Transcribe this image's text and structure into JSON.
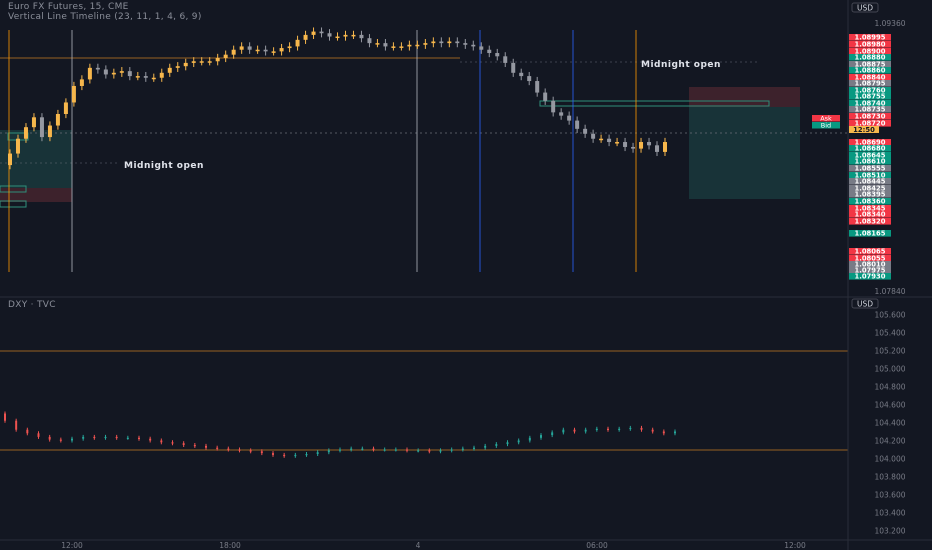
{
  "header": {
    "title_line": "Euro FX Futures, 15, CME",
    "indicator_line": "Vertical Line Timeline (23, 11, 1, 4, 6, 9)",
    "lower_title": "DXY · TVC"
  },
  "colors": {
    "background": "#131722",
    "up_candle": "#f7b74c",
    "down_candle": "#9598a1",
    "dxy_up": "#26a69a",
    "dxy_down": "#ef5350",
    "orange_line": "#c57b25",
    "session_blue": "#2962ff",
    "session_white": "#b2b5be",
    "session_orange": "#ff9800",
    "price_red": "#f23645",
    "price_green": "#089981",
    "price_gray": "#787b86"
  },
  "annotations": {
    "midnight_1": "Midnight open",
    "midnight_2": "Midnight open"
  },
  "chart_data": [
    {
      "type": "candlestick",
      "title": "Euro FX Futures, 15, CME",
      "currency": "USD",
      "y_ticks": [
        "1.09360",
        "1.07840"
      ],
      "ylim": [
        1.0778,
        1.094
      ],
      "candles_close": [
        1.0862,
        1.0871,
        1.0878,
        1.0884,
        1.0872,
        1.0879,
        1.0886,
        1.0893,
        1.0903,
        1.0907,
        1.0914,
        1.0913,
        1.091,
        1.0911,
        1.0912,
        1.0909,
        1.0909,
        1.0908,
        1.0908,
        1.0911,
        1.0914,
        1.0915,
        1.0917,
        1.0918,
        1.0918,
        1.0918,
        1.092,
        1.0922,
        1.0925,
        1.0927,
        1.0925,
        1.0925,
        1.0924,
        1.0924,
        1.0926,
        1.0927,
        1.0931,
        1.0934,
        1.0936,
        1.0935,
        1.0933,
        1.0933,
        1.0934,
        1.0934,
        1.0932,
        1.0929,
        1.0929,
        1.0927,
        1.0927,
        1.0927,
        1.0928,
        1.0928,
        1.0929,
        1.093,
        1.0929,
        1.093,
        1.0929,
        1.0928,
        1.0927,
        1.0925,
        1.0923,
        1.0921,
        1.0917,
        1.0911,
        1.0909,
        1.0906,
        1.0899,
        1.0894,
        1.0887,
        1.0885,
        1.0882,
        1.0877,
        1.0874,
        1.0871,
        1.0871,
        1.0869,
        1.0869,
        1.0866,
        1.0865,
        1.0869,
        1.0867,
        1.0863,
        1.0869
      ],
      "candles_open": [
        1.0855,
        1.0862,
        1.0871,
        1.0878,
        1.0884,
        1.0872,
        1.0879,
        1.0886,
        1.0893,
        1.0903,
        1.0907,
        1.0914,
        1.0913,
        1.091,
        1.0911,
        1.0912,
        1.0909,
        1.0909,
        1.0908,
        1.0908,
        1.0911,
        1.0914,
        1.0915,
        1.0917,
        1.0918,
        1.0918,
        1.0918,
        1.092,
        1.0922,
        1.0925,
        1.0927,
        1.0925,
        1.0925,
        1.0924,
        1.0924,
        1.0926,
        1.0927,
        1.0931,
        1.0934,
        1.0936,
        1.0935,
        1.0933,
        1.0933,
        1.0934,
        1.0934,
        1.0932,
        1.0929,
        1.0929,
        1.0927,
        1.0927,
        1.0927,
        1.0928,
        1.0928,
        1.0929,
        1.093,
        1.0929,
        1.093,
        1.0929,
        1.0928,
        1.0927,
        1.0925,
        1.0923,
        1.0921,
        1.0917,
        1.0911,
        1.0909,
        1.0906,
        1.0899,
        1.0894,
        1.0887,
        1.0885,
        1.0882,
        1.0877,
        1.0874,
        1.0871,
        1.0871,
        1.0869,
        1.0869,
        1.0866,
        1.0865,
        1.0869,
        1.0867,
        1.0863
      ],
      "price_labels": [
        {
          "text": "1.08995",
          "color": "red"
        },
        {
          "text": "1.08980",
          "color": "red"
        },
        {
          "text": "1.08900",
          "color": "red"
        },
        {
          "text": "1.08880",
          "color": "green"
        },
        {
          "text": "1.08875",
          "color": "gray"
        },
        {
          "text": "1.08860",
          "color": "green"
        },
        {
          "text": "1.08840",
          "color": "red"
        },
        {
          "text": "1.08795",
          "color": "gray"
        },
        {
          "text": "1.08760",
          "color": "green"
        },
        {
          "text": "1.08755",
          "color": "green"
        },
        {
          "text": "1.08740",
          "color": "green"
        },
        {
          "text": "1.08735",
          "color": "gray"
        },
        {
          "text": "1.08730",
          "color": "red"
        },
        {
          "text": "1.08720",
          "color": "red"
        },
        {
          "text": "1.08690",
          "color": "red"
        },
        {
          "text": "1.08680",
          "color": "green"
        },
        {
          "text": "1.08645",
          "color": "green"
        },
        {
          "text": "1.08610",
          "color": "green"
        },
        {
          "text": "1.08555",
          "color": "gray"
        },
        {
          "text": "1.08510",
          "color": "green"
        },
        {
          "text": "1.08445",
          "color": "gray"
        },
        {
          "text": "1.08425",
          "color": "gray"
        },
        {
          "text": "1.08395",
          "color": "gray"
        },
        {
          "text": "1.08360",
          "color": "green"
        },
        {
          "text": "1.08345",
          "color": "red"
        },
        {
          "text": "1.08340",
          "color": "red"
        },
        {
          "text": "1.08320",
          "color": "red"
        },
        {
          "text": "1.08165",
          "color": "green"
        },
        {
          "text": "1.08065",
          "color": "red"
        },
        {
          "text": "1.08055",
          "color": "red"
        },
        {
          "text": "1.08010",
          "color": "gray"
        },
        {
          "text": "1.07975",
          "color": "gray"
        },
        {
          "text": "1.07930",
          "color": "green"
        }
      ],
      "ask_label": "Ask",
      "bid_label": "Bid",
      "current_label": "12:50"
    },
    {
      "type": "candlestick",
      "title": "DXY · TVC",
      "currency": "USD",
      "y_ticks": [
        "105.600",
        "105.400",
        "105.200",
        "105.000",
        "104.800",
        "104.600",
        "104.400",
        "104.200",
        "104.000",
        "103.800",
        "103.600",
        "103.400",
        "103.200"
      ],
      "ylim": [
        103.15,
        105.65
      ],
      "closes": [
        104.42,
        104.32,
        104.28,
        104.24,
        104.21,
        104.2,
        104.22,
        104.24,
        104.23,
        104.24,
        104.23,
        104.23,
        104.22,
        104.2,
        104.18,
        104.17,
        104.15,
        104.14,
        104.12,
        104.11,
        104.1,
        104.09,
        104.08,
        104.06,
        104.04,
        104.03,
        104.04,
        104.05,
        104.07,
        104.09,
        104.1,
        104.11,
        104.11,
        104.1,
        104.1,
        104.1,
        104.09,
        104.09,
        104.08,
        104.09,
        104.1,
        104.11,
        104.12,
        104.14,
        104.16,
        104.18,
        104.2,
        104.23,
        104.26,
        104.29,
        104.32,
        104.3,
        104.32,
        104.33,
        104.32,
        104.33,
        104.34,
        104.32,
        104.3,
        104.28,
        104.3
      ],
      "orange_levels": [
        105.15,
        104.06
      ]
    }
  ],
  "time_axis": {
    "labels": [
      "12:00",
      "18:00",
      "4",
      "06:00",
      "12:00"
    ]
  }
}
